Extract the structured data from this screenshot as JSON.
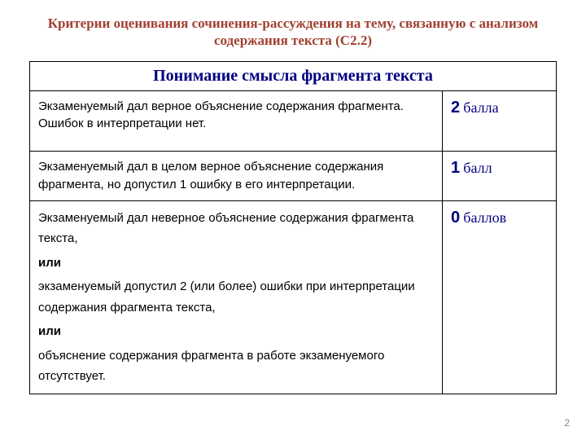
{
  "title": "Критерии оценивания сочинения-рассуждения на тему, связанную с анализом содержания текста (С2.2)",
  "table": {
    "header": "Понимание смысла фрагмента текста",
    "rows": [
      {
        "desc_lines": [
          "Экзаменуемый дал верное объяснение содержания фрагмента. Ошибок в интерпретации нет."
        ],
        "extra_gap": true,
        "score_num": "2",
        "score_unit": "балла"
      },
      {
        "desc_lines": [
          "Экзаменуемый дал в целом верное объяснение содержания фрагмента, но допустил 1 ошибку в его интерпретации."
        ],
        "score_num": "1",
        "score_unit": "балл"
      },
      {
        "desc_lines": [
          "Экзаменуемый дал неверное объяснение содержания фрагмента текста,",
          "или",
          "экзаменуемый допустил 2 (или более) ошибки при интерпретации содержания фрагмента текста,",
          "или",
          "объяснение содержания фрагмента в работе экзаменуемого отсутствует."
        ],
        "score_num": "0",
        "score_unit": "баллов"
      }
    ]
  },
  "page_number": "2",
  "colors": {
    "title": "#a04030",
    "accent": "#000080",
    "border": "#000000",
    "text": "#000000",
    "bg": "#ffffff"
  },
  "fontsizes": {
    "title": 17,
    "header": 20,
    "body": 15,
    "score_num": 20,
    "score_unit": 18,
    "page_number": 12
  }
}
